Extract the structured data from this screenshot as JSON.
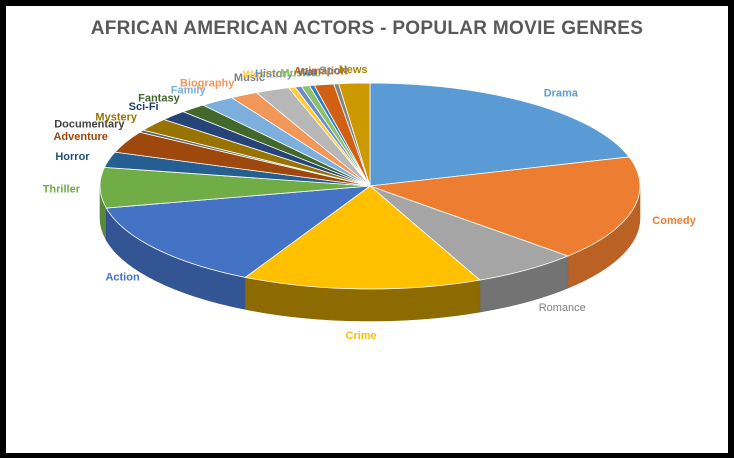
{
  "chart_data": {
    "type": "pie",
    "title": "AFRICAN AMERICAN ACTORS - POPULAR MOVIE GENRES",
    "slices": [
      {
        "label": "Drama",
        "value": 21.0,
        "color": "#5B9BD5"
      },
      {
        "label": "Comedy",
        "value": 16.9,
        "color": "#ED7D31"
      },
      {
        "label": "Romance",
        "value": 6.6,
        "color": "#A5A5A5"
      },
      {
        "label": "Crime",
        "value": 14.7,
        "color": "#FFC000"
      },
      {
        "label": "Action",
        "value": 14.3,
        "color": "#4472C4"
      },
      {
        "label": "Thriller",
        "value": 6.5,
        "color": "#70AD47"
      },
      {
        "label": "Horror",
        "value": 2.5,
        "color": "#255E91"
      },
      {
        "label": "Adventure",
        "value": 3.5,
        "color": "#9E480E"
      },
      {
        "label": "Documentary",
        "value": 0.4,
        "color": "#636363"
      },
      {
        "label": "Mystery",
        "value": 2.1,
        "color": "#997300"
      },
      {
        "label": "Sci-Fi",
        "value": 1.7,
        "color": "#264478"
      },
      {
        "label": "Fantasy",
        "value": 1.6,
        "color": "#43682B"
      },
      {
        "label": "Family",
        "value": 2.1,
        "color": "#7CAFDD"
      },
      {
        "label": "Biography",
        "value": 1.7,
        "color": "#F1975A"
      },
      {
        "label": "Music",
        "value": 2.1,
        "color": "#B7B7B7"
      },
      {
        "label": "Western",
        "value": 0.4,
        "color": "#FFCD33"
      },
      {
        "label": "History",
        "value": 0.4,
        "color": "#698ED0"
      },
      {
        "label": "Musical",
        "value": 0.5,
        "color": "#8CC168"
      },
      {
        "label": "War",
        "value": 0.3,
        "color": "#327DC2"
      },
      {
        "label": "Animation",
        "value": 1.2,
        "color": "#D26012"
      },
      {
        "label": "Sport",
        "value": 0.3,
        "color": "#848484"
      },
      {
        "label": "News",
        "value": 1.9,
        "color": "#CC9A00"
      }
    ]
  }
}
